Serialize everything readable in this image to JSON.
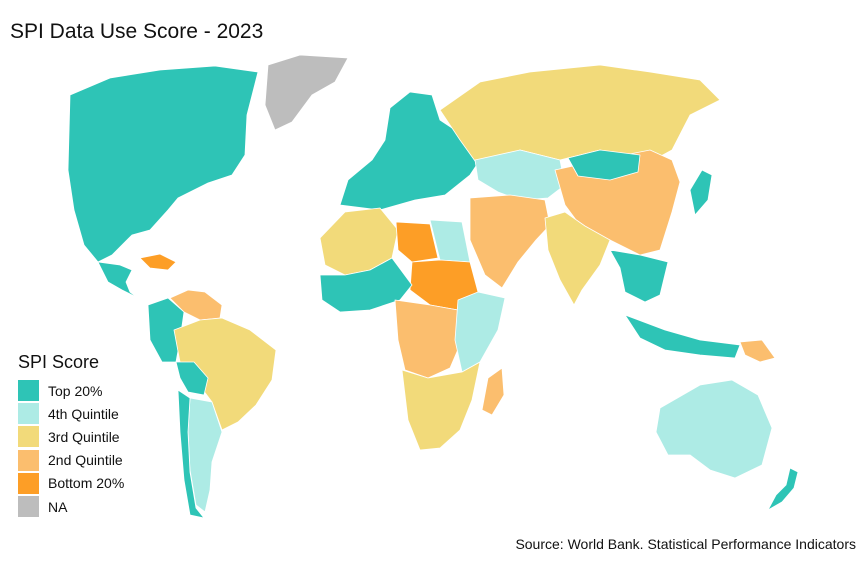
{
  "title": "SPI Data Use Score - 2023",
  "source": "Source: World Bank. Statistical Performance Indicators",
  "legend": {
    "title": "SPI Score",
    "items": [
      {
        "label": "Top 20%",
        "color": "#2EC4B6"
      },
      {
        "label": "4th Quintile",
        "color": "#ADEBE5"
      },
      {
        "label": "3rd Quintile",
        "color": "#F2DA7A"
      },
      {
        "label": "2nd Quintile",
        "color": "#FBBE6E"
      },
      {
        "label": "Bottom 20%",
        "color": "#FD9E26"
      },
      {
        "label": "NA",
        "color": "#BDBDBD"
      }
    ]
  },
  "regions": [
    {
      "name": "north-america",
      "category": "Top 20%"
    },
    {
      "name": "greenland",
      "category": "NA"
    },
    {
      "name": "central-america",
      "category": "Top 20%"
    },
    {
      "name": "caribbean",
      "category": "Bottom 20%"
    },
    {
      "name": "venezuela-region",
      "category": "2nd Quintile"
    },
    {
      "name": "colombia-peru",
      "category": "Top 20%"
    },
    {
      "name": "brazil",
      "category": "3rd Quintile"
    },
    {
      "name": "bolivia",
      "category": "Top 20%"
    },
    {
      "name": "argentina",
      "category": "4th Quintile"
    },
    {
      "name": "chile",
      "category": "Top 20%"
    },
    {
      "name": "europe",
      "category": "Top 20%"
    },
    {
      "name": "russia",
      "category": "3rd Quintile"
    },
    {
      "name": "central-asia",
      "category": "4th Quintile"
    },
    {
      "name": "china",
      "category": "2nd Quintile"
    },
    {
      "name": "mongolia",
      "category": "Top 20%"
    },
    {
      "name": "middle-east",
      "category": "2nd Quintile"
    },
    {
      "name": "india",
      "category": "3rd Quintile"
    },
    {
      "name": "southeast-asia",
      "category": "Top 20%"
    },
    {
      "name": "japan",
      "category": "Top 20%"
    },
    {
      "name": "north-africa-west",
      "category": "3rd Quintile"
    },
    {
      "name": "libya",
      "category": "Bottom 20%"
    },
    {
      "name": "egypt",
      "category": "4th Quintile"
    },
    {
      "name": "sudan-chad",
      "category": "Bottom 20%"
    },
    {
      "name": "sahel-west",
      "category": "Top 20%"
    },
    {
      "name": "central-africa",
      "category": "2nd Quintile"
    },
    {
      "name": "east-africa",
      "category": "4th Quintile"
    },
    {
      "name": "southern-africa",
      "category": "3rd Quintile"
    },
    {
      "name": "madagascar",
      "category": "2nd Quintile"
    },
    {
      "name": "australia",
      "category": "4th Quintile"
    },
    {
      "name": "new-zealand",
      "category": "Top 20%"
    },
    {
      "name": "papua-new-guinea",
      "category": "2nd Quintile"
    },
    {
      "name": "indonesia",
      "category": "Top 20%"
    }
  ]
}
